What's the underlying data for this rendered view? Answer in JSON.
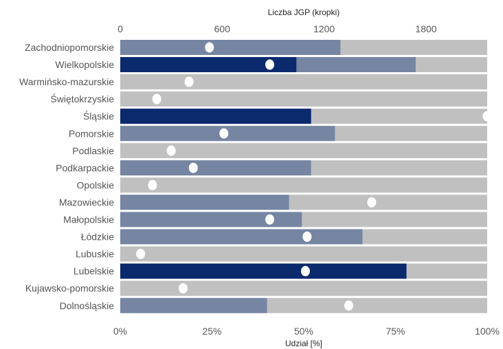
{
  "chart_data": {
    "type": "bar",
    "orientation": "horizontal",
    "xlabel": "Udział [%]",
    "x2label": "Liczba JGP (kropki)",
    "xlim": [
      0,
      100
    ],
    "x2lim": [
      0,
      2160
    ],
    "xticks": [
      "0%",
      "25%",
      "50%",
      "75%",
      "100%"
    ],
    "x2ticks": [
      "0",
      "600",
      "1200",
      "1800"
    ],
    "grid": false,
    "categories": [
      "Zachodniopomorskie",
      "Wielkopolskie",
      "Warmińsko-mazurskie",
      "Świętokrzyskie",
      "Śląskie",
      "Pomorskie",
      "Podlaskie",
      "Podkarpackie",
      "Opolskie",
      "Mazowieckie",
      "Małopolskie",
      "Łódzkie",
      "Lubuskie",
      "Lubelskie",
      "Kujawsko-pomorskie",
      "Dolnośląskie"
    ],
    "series": [
      {
        "values": [
          0,
          48,
          0,
          0,
          52,
          0,
          0,
          0,
          0,
          0,
          0,
          0,
          0,
          78,
          0,
          0
        ],
        "color": "#0b2a6e"
      },
      {
        "values": [
          60,
          80.5,
          0,
          0,
          52,
          58.5,
          0,
          52,
          0,
          46,
          49.5,
          66,
          0,
          78,
          0,
          40
        ],
        "color": "#7585a2"
      },
      {
        "values": [
          100,
          100,
          100,
          100,
          100,
          100,
          100,
          100,
          100,
          100,
          100,
          100,
          100,
          100,
          100,
          100
        ],
        "color": "#c0c0c0"
      }
    ],
    "dots": {
      "values": [
        525,
        880,
        405,
        215,
        2160,
        610,
        300,
        430,
        190,
        1480,
        880,
        1100,
        120,
        1090,
        370,
        1345
      ],
      "color": "#ffffff"
    }
  }
}
